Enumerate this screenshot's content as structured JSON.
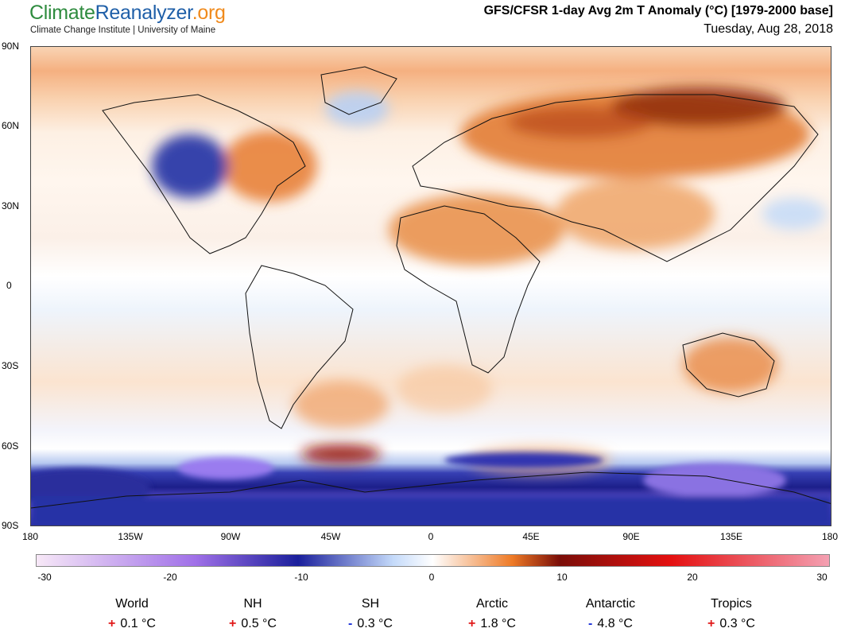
{
  "header": {
    "brand_part1": "Climate",
    "brand_part2": "Reanalyzer",
    "brand_part3": ".org",
    "subtitle": "Climate Change Institute | University of Maine",
    "title": "GFS/CFSR 1-day Avg 2m T Anomaly (°C) [1979-2000 base]",
    "date": "Tuesday, Aug 28, 2018"
  },
  "map": {
    "lat_labels": [
      "90N",
      "60N",
      "30N",
      "0",
      "30S",
      "60S",
      "90S"
    ],
    "lon_labels": [
      "180",
      "135W",
      "90W",
      "45W",
      "0",
      "45E",
      "90E",
      "135E",
      "180"
    ]
  },
  "colorbar": {
    "ticks": [
      "-30",
      "-20",
      "-10",
      "0",
      "10",
      "20",
      "30"
    ],
    "colors": {
      "deep_cold": "#f7e8f7",
      "violet": "#a070e8",
      "blue": "#1a1f9c",
      "light_blue": "#c4dafa",
      "neutral": "#ffffff",
      "orange": "#ee7a26",
      "dark_red": "#7a0e08",
      "red": "#e41010",
      "pink": "#f4a0b2"
    }
  },
  "stats": [
    {
      "label": "World",
      "sign": "+",
      "value": "0.1 °C"
    },
    {
      "label": "NH",
      "sign": "+",
      "value": "0.5 °C"
    },
    {
      "label": "SH",
      "sign": "-",
      "value": "0.3 °C"
    },
    {
      "label": "Arctic",
      "sign": "+",
      "value": "1.8 °C"
    },
    {
      "label": "Antarctic",
      "sign": "-",
      "value": "4.8 °C"
    },
    {
      "label": "Tropics",
      "sign": "+",
      "value": "0.3 °C"
    }
  ]
}
